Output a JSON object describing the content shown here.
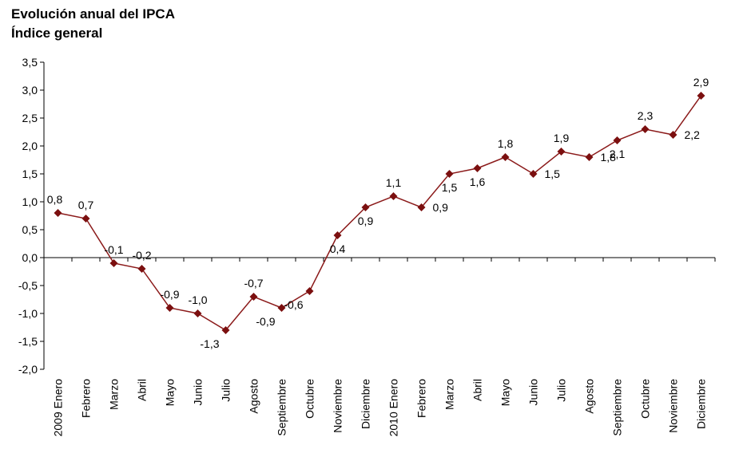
{
  "chart_data": {
    "type": "line",
    "title": "Evolución anual del IPCA",
    "subtitle": "Índice general",
    "categories": [
      "2009 Enero",
      "Febrero",
      "Marzo",
      "Abril",
      "Mayo",
      "Junio",
      "Julio",
      "Agosto",
      "Septiembre",
      "Octubre",
      "Noviembre",
      "Diciembre",
      "2010 Enero",
      "Febrero",
      "Marzo",
      "Abril",
      "Mayo",
      "Junio",
      "Julio",
      "Agosto",
      "Septiembre",
      "Octubre",
      "Noviembre",
      "Diciembre"
    ],
    "series": [
      {
        "values": [
          0.8,
          0.7,
          -0.1,
          -0.2,
          -0.9,
          -1.0,
          -1.3,
          -0.7,
          -0.9,
          -0.6,
          0.4,
          0.9,
          1.1,
          0.9,
          1.5,
          1.6,
          1.8,
          1.5,
          1.9,
          1.8,
          2.1,
          2.3,
          2.2,
          2.9
        ],
        "labels": [
          "0,8",
          "0,7",
          "-0,1",
          "-0,2",
          "-0,9",
          "-1,0",
          "-1,3",
          "-0,7",
          "-0,9",
          "-0,6",
          "0,4",
          "0,9",
          "1,1",
          "0,9",
          "1,5",
          "1,6",
          "1,8",
          "1,5",
          "1,9",
          "1,8",
          "2,1",
          "2,3",
          "2,2",
          "2,9"
        ]
      }
    ],
    "ylim": [
      -2.0,
      3.5
    ],
    "yticks": [
      3.5,
      3.0,
      2.5,
      2.0,
      1.5,
      1.0,
      0.5,
      0.0,
      -0.5,
      -1.0,
      -1.5,
      -2.0
    ],
    "ytick_labels": [
      "3,5",
      "3,0",
      "2,5",
      "2,0",
      "1,5",
      "1,0",
      "0,5",
      "0,0",
      "-0,5",
      "-1,0",
      "-1,5",
      "-2,0"
    ],
    "grid": false,
    "colors": {
      "line": "#8b1a1a",
      "marker": "#7b0f0f",
      "axis": "#000000"
    }
  }
}
